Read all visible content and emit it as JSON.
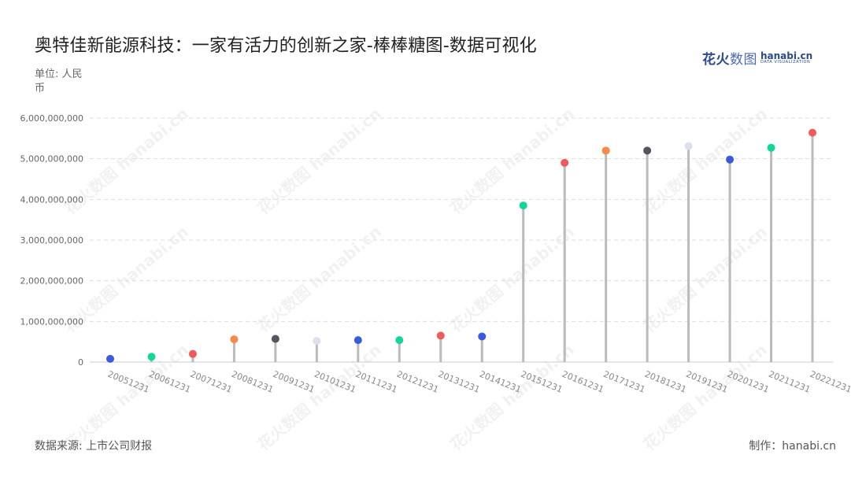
{
  "header": {
    "title": "奥特佳新能源科技：一家有活力的创新之家-棒棒糖图-数据可视化",
    "unit": "单位: 人民币"
  },
  "logo": {
    "cn_main": "花火",
    "cn_light": "数图",
    "en": "hanabi.cn",
    "sub": "DATA VISUALIZATION"
  },
  "footer": {
    "source": "数据来源: 上市公司财报",
    "maker": "制作：hanabi.cn"
  },
  "watermark": "花火数图 hanabi.cn",
  "chart_data": {
    "type": "lollipop",
    "title": "奥特佳新能源科技：一家有活力的创新之家-棒棒糖图-数据可视化",
    "ylabel": "单位: 人民币",
    "ylim": [
      0,
      6000000000
    ],
    "yticks": [
      0,
      1000000000,
      2000000000,
      3000000000,
      4000000000,
      5000000000,
      6000000000
    ],
    "ytick_labels": [
      "0",
      "1,000,000,000",
      "2,000,000,000",
      "3,000,000,000",
      "4,000,000,000",
      "5,000,000,000",
      "6,000,000,000"
    ],
    "grid": true,
    "categories": [
      "20051231",
      "20061231",
      "20071231",
      "20081231",
      "20091231",
      "20101231",
      "20111231",
      "20121231",
      "20131231",
      "20141231",
      "20151231",
      "20161231",
      "20171231",
      "20181231",
      "20191231",
      "20201231",
      "20211231",
      "20221231"
    ],
    "values": [
      80000000,
      130000000,
      200000000,
      560000000,
      570000000,
      520000000,
      540000000,
      540000000,
      650000000,
      630000000,
      3850000000,
      4900000000,
      5200000000,
      5200000000,
      5310000000,
      4980000000,
      5270000000,
      5640000000
    ],
    "colors": [
      "#3b5bdb",
      "#12d69a",
      "#f05a5a",
      "#f7894a",
      "#555560",
      "#dde0ec",
      "#3b5bdb",
      "#12d69a",
      "#f05a5a",
      "#3b5bdb",
      "#12d69a",
      "#f05a5a",
      "#f7894a",
      "#555560",
      "#dde0ec",
      "#3b5bdb",
      "#12d69a",
      "#f05a5a"
    ],
    "stem_color": "#bbbbbb",
    "grid_color": "#dddddd"
  }
}
